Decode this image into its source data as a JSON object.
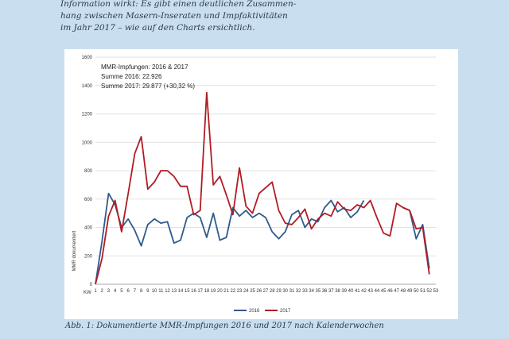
{
  "intro": {
    "lines": [
      "Information wirkt: Es gibt einen deutlichen Zusammen-",
      "hang zwischen Masern-Inseraten und Impfaktivitäten",
      "im Jahr 2017 – wie auf den Charts ersichtlich."
    ]
  },
  "caption": "Abb. 1: Dokumentierte MMR-Impfungen 2016 und 2017 nach Kalenderwochen",
  "colors": {
    "s2016": "#2e5a8c",
    "s2017": "#b01c24",
    "grid": "#d9d9d9"
  },
  "chart_data": {
    "type": "line",
    "title": "",
    "ylabel": "MMR dokumentiert",
    "xlabel": "KW",
    "ylim": [
      0,
      1600
    ],
    "yticks": [
      0,
      200,
      400,
      600,
      800,
      1000,
      1200,
      1400,
      1600
    ],
    "annotation": [
      "MMR-Impfungen: 2016 & 2017",
      "Summe 2016: 22.926",
      "Summe 2017: 29.877 (+30,32 %)"
    ],
    "legend_position": "bottom-center",
    "x": [
      1,
      2,
      3,
      4,
      5,
      6,
      7,
      8,
      9,
      10,
      11,
      12,
      13,
      14,
      15,
      16,
      17,
      18,
      19,
      20,
      21,
      22,
      23,
      24,
      25,
      26,
      27,
      28,
      29,
      30,
      31,
      32,
      33,
      34,
      35,
      36,
      37,
      38,
      39,
      40,
      41,
      42,
      43,
      44,
      45,
      46,
      47,
      48,
      49,
      50,
      51,
      52,
      53
    ],
    "series": [
      {
        "name": "2016",
        "values": [
          0,
          300,
          640,
          560,
          400,
          460,
          380,
          270,
          420,
          460,
          430,
          440,
          290,
          310,
          470,
          500,
          470,
          330,
          500,
          310,
          330,
          540,
          480,
          520,
          470,
          500,
          470,
          370,
          320,
          370,
          490,
          520,
          400,
          460,
          440,
          540,
          590,
          510,
          540,
          470,
          510,
          590,
          null,
          null,
          null,
          null,
          null,
          540,
          520,
          320,
          420,
          110,
          null
        ]
      },
      {
        "name": "2017",
        "values": [
          0,
          180,
          480,
          590,
          370,
          640,
          920,
          1040,
          670,
          720,
          800,
          800,
          760,
          690,
          690,
          490,
          520,
          1350,
          700,
          760,
          630,
          490,
          820,
          550,
          500,
          640,
          680,
          720,
          520,
          430,
          420,
          470,
          530,
          390,
          460,
          500,
          480,
          580,
          530,
          520,
          560,
          540,
          590,
          470,
          360,
          340,
          570,
          540,
          520,
          390,
          400,
          70,
          null
        ]
      }
    ]
  }
}
